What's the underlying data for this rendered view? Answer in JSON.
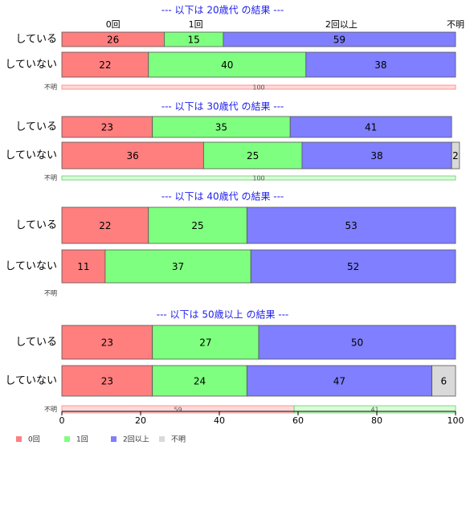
{
  "chart_data": {
    "type": "bar",
    "orientation": "horizontal",
    "stacked": true,
    "xlim": [
      0,
      100
    ],
    "xticks": [
      0,
      20,
      40,
      60,
      80,
      100
    ],
    "categories": [
      "0回",
      "1回",
      "2回以上",
      "不明"
    ],
    "colors": [
      "#ff7f7f",
      "#7fff7f",
      "#7f7fff",
      "#d9d9d9"
    ],
    "top_category_labels": [
      {
        "text": "0回",
        "x": 13
      },
      {
        "text": "1回",
        "x": 34
      },
      {
        "text": "2回以上",
        "x": 71
      },
      {
        "text": "不明",
        "x": 100
      }
    ],
    "panels": [
      {
        "title": "--- 以下は 20歳代 の結果 ---",
        "rows": [
          {
            "label": "している",
            "values": [
              26,
              15,
              59,
              0
            ]
          },
          {
            "label": "していない",
            "values": [
              22,
              40,
              38,
              0
            ]
          }
        ],
        "unknown": {
          "label": "不明",
          "values": [
            100,
            0,
            0,
            0
          ],
          "value_labels": [
            "100",
            "",
            "",
            ""
          ]
        }
      },
      {
        "title": "--- 以下は 30歳代 の結果 ---",
        "rows": [
          {
            "label": "している",
            "values": [
              23,
              35,
              41,
              0
            ]
          },
          {
            "label": "していない",
            "values": [
              36,
              25,
              38,
              2
            ]
          }
        ],
        "unknown": {
          "label": "不明",
          "values": [
            0,
            100,
            0,
            0
          ],
          "value_labels": [
            "",
            "100",
            "",
            ""
          ]
        }
      },
      {
        "title": "--- 以下は 40歳代 の結果 ---",
        "rows": [
          {
            "label": "している",
            "values": [
              22,
              25,
              53,
              0
            ]
          },
          {
            "label": "していない",
            "values": [
              11,
              37,
              52,
              0
            ]
          }
        ],
        "unknown": {
          "label": "不明",
          "values": [
            0,
            0,
            0,
            0
          ],
          "value_labels": [
            "",
            "",
            "",
            ""
          ]
        }
      },
      {
        "title": "--- 以下は 50歳以上 の結果 ---",
        "rows": [
          {
            "label": "している",
            "values": [
              23,
              27,
              50,
              0
            ]
          },
          {
            "label": "していない",
            "values": [
              23,
              24,
              47,
              6
            ]
          }
        ],
        "unknown": {
          "label": "不明",
          "values": [
            59,
            41,
            0,
            0
          ],
          "value_labels": [
            "59",
            "41",
            "",
            ""
          ]
        }
      }
    ],
    "legend": [
      "0回",
      "1回",
      "2回以上",
      "不明"
    ],
    "legend_position": "bottom-left"
  }
}
